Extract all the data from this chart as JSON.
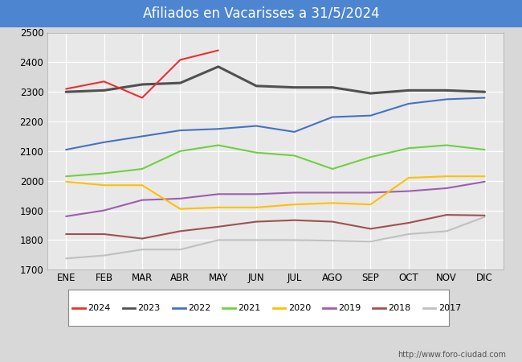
{
  "title": "Afiliados en Vacarisses a 31/5/2024",
  "title_bg_color": "#4d85d0",
  "title_text_color": "#ffffff",
  "ylim": [
    1700,
    2500
  ],
  "yticks": [
    1700,
    1800,
    1900,
    2000,
    2100,
    2200,
    2300,
    2400,
    2500
  ],
  "months": [
    "ENE",
    "FEB",
    "MAR",
    "ABR",
    "MAY",
    "JUN",
    "JUL",
    "AGO",
    "SEP",
    "OCT",
    "NOV",
    "DIC"
  ],
  "series": {
    "2024": {
      "color": "#e83030",
      "linewidth": 1.5,
      "data": [
        2310,
        2335,
        2280,
        2408,
        2440,
        null,
        null,
        null,
        null,
        null,
        null,
        null
      ]
    },
    "2023": {
      "color": "#505050",
      "linewidth": 2.2,
      "data": [
        2300,
        2305,
        2325,
        2330,
        2385,
        2320,
        2315,
        2315,
        2295,
        2305,
        2305,
        2300
      ]
    },
    "2022": {
      "color": "#4472c4",
      "linewidth": 1.5,
      "data": [
        2105,
        2130,
        2150,
        2170,
        2175,
        2185,
        2165,
        2215,
        2220,
        2260,
        2275,
        2280
      ]
    },
    "2021": {
      "color": "#70d040",
      "linewidth": 1.5,
      "data": [
        2015,
        2025,
        2040,
        2100,
        2120,
        2095,
        2085,
        2040,
        2080,
        2110,
        2120,
        2105
      ]
    },
    "2020": {
      "color": "#ffc000",
      "linewidth": 1.5,
      "data": [
        1997,
        1985,
        1985,
        1905,
        1910,
        1910,
        1920,
        1925,
        1920,
        2010,
        2015,
        2015
      ]
    },
    "2019": {
      "color": "#9e5daf",
      "linewidth": 1.5,
      "data": [
        1880,
        1900,
        1935,
        1940,
        1955,
        1955,
        1960,
        1960,
        1960,
        1965,
        1975,
        1997
      ]
    },
    "2018": {
      "color": "#a05050",
      "linewidth": 1.5,
      "data": [
        1820,
        1820,
        1805,
        1830,
        1845,
        1862,
        1867,
        1862,
        1838,
        1858,
        1885,
        1883
      ]
    },
    "2017": {
      "color": "#c0c0c0",
      "linewidth": 1.5,
      "data": [
        1738,
        1748,
        1768,
        1768,
        1800,
        1800,
        1800,
        1798,
        1795,
        1820,
        1830,
        1878
      ]
    }
  },
  "background_color": "#d8d8d8",
  "plot_bg_color": "#e8e8e8",
  "plot_face_color": "#e8e8e8",
  "grid_color": "#ffffff",
  "footer_url": "http://www.foro-ciudad.com",
  "years_order": [
    "2024",
    "2023",
    "2022",
    "2021",
    "2020",
    "2019",
    "2018",
    "2017"
  ]
}
